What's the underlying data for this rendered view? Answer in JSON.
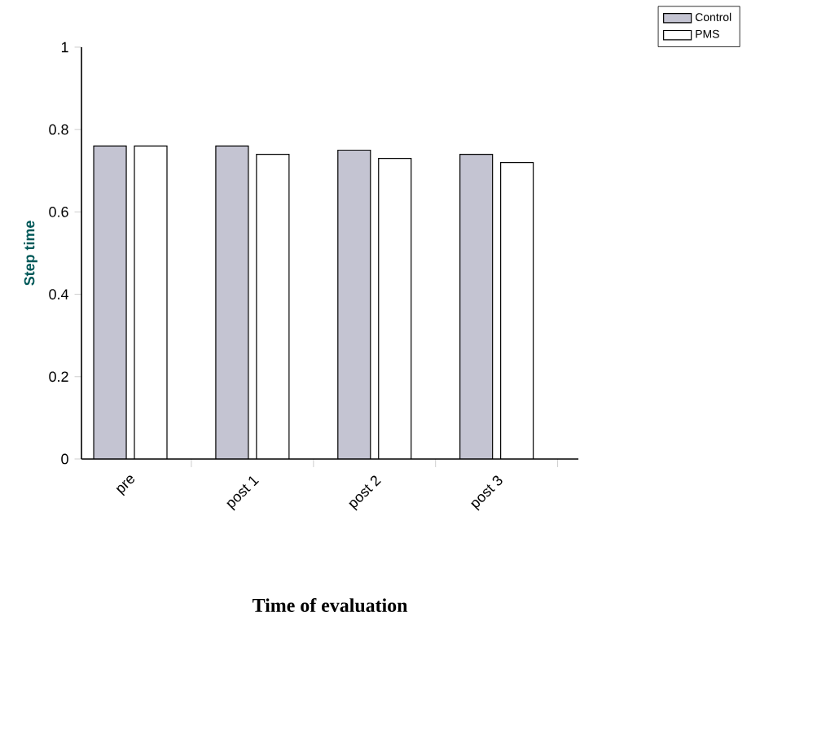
{
  "chart_data": {
    "type": "bar",
    "xlabel": "Time of evaluation",
    "ylabel": "Step time",
    "categories": [
      "pre",
      "post 1",
      "post 2",
      "post 3"
    ],
    "series": [
      {
        "name": "Control",
        "color": "#c4c4d2",
        "values": [
          0.76,
          0.76,
          0.75,
          0.74
        ]
      },
      {
        "name": "PMS",
        "color": "#ffffff",
        "values": [
          0.76,
          0.74,
          0.73,
          0.72
        ]
      }
    ],
    "ylim": [
      0,
      1
    ],
    "yticks": [
      0,
      0.2,
      0.4,
      0.6,
      0.8,
      1
    ],
    "legend": "top right"
  }
}
